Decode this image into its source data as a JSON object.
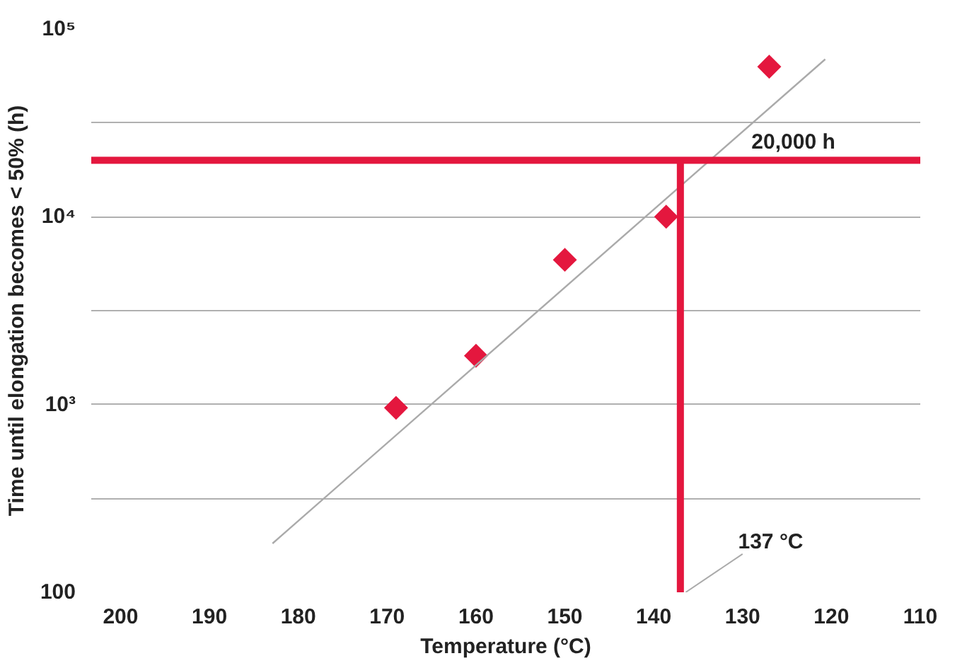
{
  "chart_data": {
    "type": "scatter",
    "xlabel": "Temperature (°C)",
    "ylabel": "Time until elongation becomes < 50% (h)",
    "log": "y",
    "grid": "y",
    "marker": "diamond",
    "xlim": [
      203.3,
      110
    ],
    "xticks": [
      200,
      190,
      180,
      170,
      160,
      150,
      140,
      130,
      120,
      110
    ],
    "ylim": [
      100,
      100000
    ],
    "yticks": [
      {
        "value": 100,
        "label": "100"
      },
      {
        "value": 316,
        "label": null
      },
      {
        "value": 1000,
        "label": "10³"
      },
      {
        "value": 3162,
        "label": null
      },
      {
        "value": 10000,
        "label": "10⁴"
      },
      {
        "value": 31623,
        "label": null
      },
      {
        "value": 100000,
        "label": "10⁵"
      }
    ],
    "series": [
      {
        "color": "#e4173e",
        "x": [
          169,
          160,
          150,
          138.6,
          127
        ],
        "values": [
          960,
          1820,
          5900,
          10000,
          63000
        ]
      },
      {
        "type": "line",
        "marker": "none",
        "color": "#aaaaaa",
        "x": [
          182.9,
          120.7
        ],
        "values": [
          182,
          69000
        ]
      }
    ],
    "ref_lines": [
      {
        "axis": "y",
        "value": 20000,
        "label": "20,000 h",
        "color": "#e4173e"
      },
      {
        "axis": "x",
        "value": 137,
        "label": "137 °C",
        "color": "#e4173e"
      }
    ]
  }
}
